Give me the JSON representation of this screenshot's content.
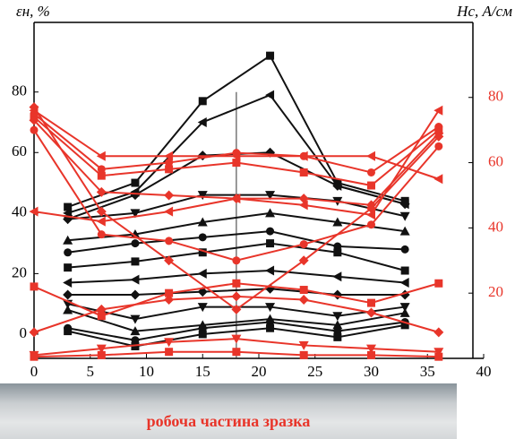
{
  "chart_data": {
    "type": "line",
    "y_label": "εн, %",
    "y2_label": "Hc, А/см",
    "caption": "робоча частина зразка",
    "xlim": [
      0,
      40
    ],
    "xticks": [
      0,
      5,
      10,
      15,
      20,
      25,
      30,
      35,
      40
    ],
    "ylim": [
      -8,
      103
    ],
    "yticks": [
      0,
      20,
      40,
      60,
      80
    ],
    "y2lim": [
      0,
      103
    ],
    "y2ticks": [
      20,
      40,
      60,
      80
    ],
    "vline_x": 18,
    "series": [
      {
        "color": "#111111",
        "marker": "square",
        "x": [
          3,
          9,
          15,
          21,
          27,
          33
        ],
        "values": [
          42,
          50,
          77,
          92,
          50,
          44
        ]
      },
      {
        "color": "#111111",
        "marker": "triangle-left",
        "x": [
          3,
          9,
          15,
          21,
          27,
          33
        ],
        "values": [
          40,
          47,
          70,
          79,
          49,
          43
        ]
      },
      {
        "color": "#111111",
        "marker": "diamond",
        "x": [
          3,
          9,
          15,
          21,
          27,
          33
        ],
        "values": [
          38,
          46,
          59,
          60,
          49,
          43
        ]
      },
      {
        "color": "#111111",
        "marker": "triangle-down",
        "x": [
          3,
          9,
          15,
          21,
          27,
          33
        ],
        "values": [
          38,
          40,
          46,
          46,
          44,
          39
        ]
      },
      {
        "color": "#111111",
        "marker": "triangle-up",
        "x": [
          3,
          9,
          15,
          21,
          27,
          33
        ],
        "values": [
          31,
          33,
          37,
          40,
          37,
          34
        ]
      },
      {
        "color": "#111111",
        "marker": "circle",
        "x": [
          3,
          9,
          15,
          21,
          27,
          33
        ],
        "values": [
          27,
          30,
          32,
          34,
          29,
          28
        ]
      },
      {
        "color": "#111111",
        "marker": "square",
        "x": [
          3,
          9,
          15,
          21,
          27,
          33
        ],
        "values": [
          22,
          24,
          27,
          30,
          27,
          21
        ]
      },
      {
        "color": "#111111",
        "marker": "triangle-left",
        "x": [
          3,
          9,
          15,
          21,
          27,
          33
        ],
        "values": [
          17,
          18,
          20,
          21,
          19,
          17
        ]
      },
      {
        "color": "#111111",
        "marker": "diamond",
        "x": [
          3,
          9,
          15,
          21,
          27,
          33
        ],
        "values": [
          13,
          13,
          14,
          15,
          13,
          13
        ]
      },
      {
        "color": "#111111",
        "marker": "triangle-down",
        "x": [
          3,
          9,
          15,
          21,
          27,
          33
        ],
        "values": [
          10,
          5,
          9,
          9,
          6,
          9
        ]
      },
      {
        "color": "#111111",
        "marker": "triangle-up",
        "x": [
          3,
          9,
          15,
          21,
          27,
          33
        ],
        "values": [
          8,
          1,
          3,
          5,
          3,
          7
        ]
      },
      {
        "color": "#111111",
        "marker": "circle",
        "x": [
          3,
          9,
          15,
          21,
          27,
          33
        ],
        "values": [
          2,
          -2,
          2,
          4,
          1,
          4
        ]
      },
      {
        "color": "#111111",
        "marker": "square",
        "x": [
          3,
          9,
          15,
          21,
          27,
          33
        ],
        "values": [
          1,
          -4,
          0,
          2,
          -1,
          3
        ]
      },
      {
        "color": "#e8352a",
        "marker": "triangle-left",
        "axis": "y2",
        "x": [
          0,
          6,
          12,
          18,
          24,
          30,
          36
        ],
        "values": [
          76,
          62,
          62,
          62,
          62,
          62,
          55
        ]
      },
      {
        "color": "#e8352a",
        "marker": "circle",
        "axis": "y2",
        "x": [
          0,
          6,
          12,
          18,
          24,
          30,
          36
        ],
        "values": [
          75,
          58,
          60,
          63,
          62,
          57,
          71
        ]
      },
      {
        "color": "#e8352a",
        "marker": "square",
        "axis": "y2",
        "x": [
          0,
          6,
          12,
          18,
          24,
          30,
          36
        ],
        "values": [
          74,
          56,
          58,
          60,
          57,
          53,
          70
        ]
      },
      {
        "color": "#e8352a",
        "marker": "diamond",
        "axis": "y2",
        "x": [
          0,
          6,
          12,
          18,
          24,
          30,
          36
        ],
        "values": [
          73,
          51,
          50,
          49,
          49,
          47,
          69
        ]
      },
      {
        "color": "#e8352a",
        "marker": "triangle-left",
        "axis": "y2",
        "x": [
          0,
          6,
          12,
          18,
          24,
          30,
          36
        ],
        "values": [
          45,
          42,
          45,
          49,
          47,
          44,
          76
        ]
      },
      {
        "color": "#e8352a",
        "marker": "circle",
        "axis": "y2",
        "x": [
          0,
          6,
          12,
          18,
          24,
          30,
          36
        ],
        "values": [
          70,
          38,
          36,
          30,
          35,
          41,
          65
        ]
      },
      {
        "color": "#e8352a",
        "marker": "diamond",
        "axis": "y2",
        "x": [
          0,
          6,
          12,
          18,
          24,
          30,
          36
        ],
        "values": [
          77,
          45,
          30,
          15,
          30,
          46,
          68
        ]
      },
      {
        "color": "#e8352a",
        "marker": "square",
        "axis": "y2",
        "x": [
          0,
          6,
          12,
          18,
          24,
          30,
          36
        ],
        "values": [
          22,
          13,
          20,
          23,
          21,
          17,
          23
        ]
      },
      {
        "color": "#e8352a",
        "marker": "diamond",
        "axis": "y2",
        "x": [
          0,
          6,
          12,
          18,
          24,
          30,
          36
        ],
        "values": [
          8,
          15,
          18,
          19,
          18,
          14,
          8
        ]
      },
      {
        "color": "#e8352a",
        "marker": "triangle-down",
        "axis": "y2",
        "x": [
          0,
          6,
          12,
          18,
          24,
          30,
          36
        ],
        "values": [
          1,
          3,
          5,
          6,
          4,
          3,
          2
        ]
      },
      {
        "color": "#e8352a",
        "marker": "square",
        "axis": "y2",
        "x": [
          0,
          6,
          12,
          18,
          24,
          30,
          36
        ],
        "values": [
          0.5,
          1,
          2,
          2,
          1,
          1,
          0.5
        ]
      }
    ]
  }
}
